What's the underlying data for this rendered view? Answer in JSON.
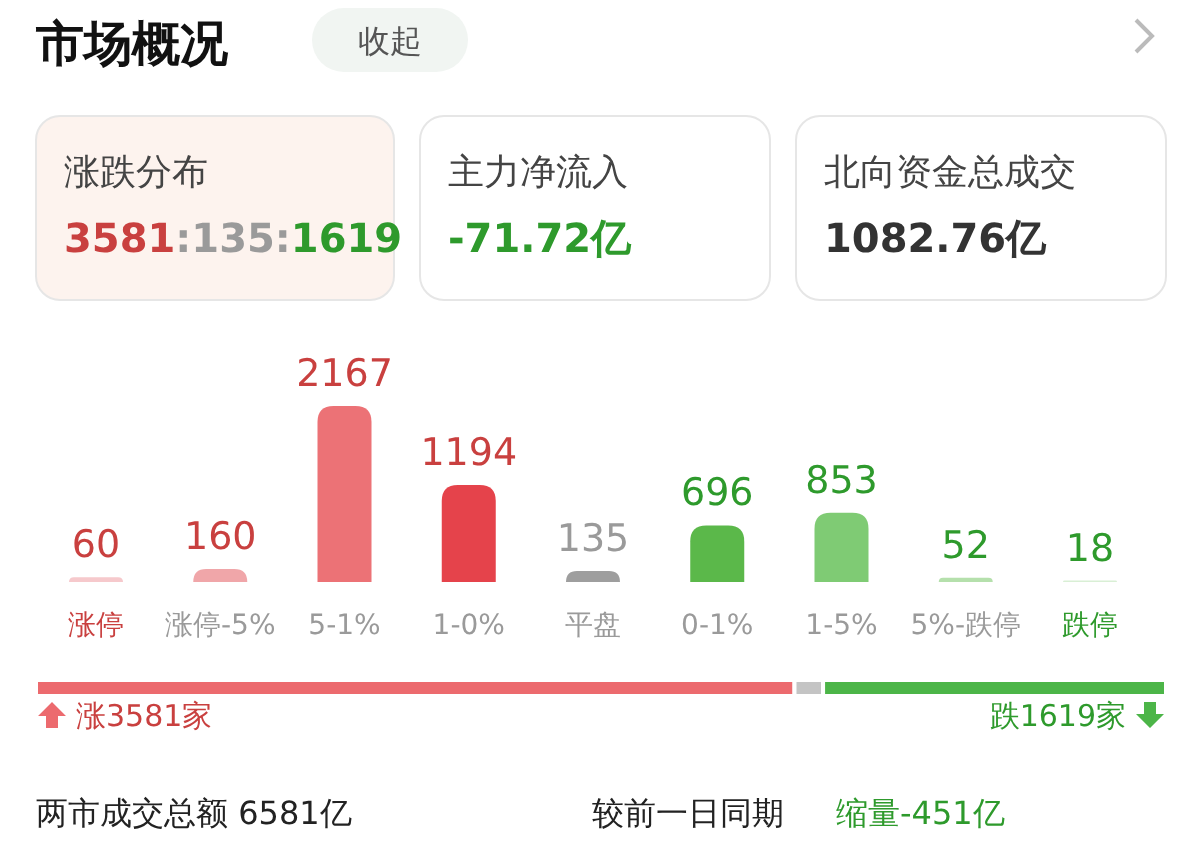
{
  "chart_data": [
    {
      "type": "bar",
      "title": "市场概况",
      "categories": [
        "涨停",
        "涨停-5%",
        "5-1%",
        "1-0%",
        "平盘",
        "0-1%",
        "1-5%",
        "5%-跌停",
        "跌停"
      ],
      "values": [
        60,
        160,
        2167,
        1194,
        135,
        696,
        853,
        52,
        18
      ],
      "colors": [
        "#f6c9cc",
        "#f0a6a9",
        "#ec7276",
        "#e5434b",
        "#9e9e9e",
        "#5bb84a",
        "#7fcb74",
        "#b5e0ac",
        "#d9efd5"
      ],
      "data_labels": true,
      "annotations": [
        "收起",
        "涨跌分布",
        "3581:135:1619",
        "主力净流入",
        "-71.72亿",
        "北向资金总成交",
        "1082.76亿"
      ]
    },
    {
      "type": "bar",
      "orientation": "horizontal",
      "stacked": true,
      "categories": [
        null
      ],
      "series": [
        {
          "color": "#ec6a6e",
          "values": [
            3581
          ],
          "value_labels": [
            "涨3581家"
          ]
        },
        {
          "color": "#c4c4c4",
          "values": [
            135
          ],
          "value_labels": [
            null
          ]
        },
        {
          "color": "#4cb548",
          "values": [
            1619
          ],
          "value_labels": [
            "跌1619家"
          ]
        }
      ],
      "annotations": [
        "两市成交总额  6581亿",
        "较前一日同期",
        "缩量-451亿"
      ]
    }
  ]
}
